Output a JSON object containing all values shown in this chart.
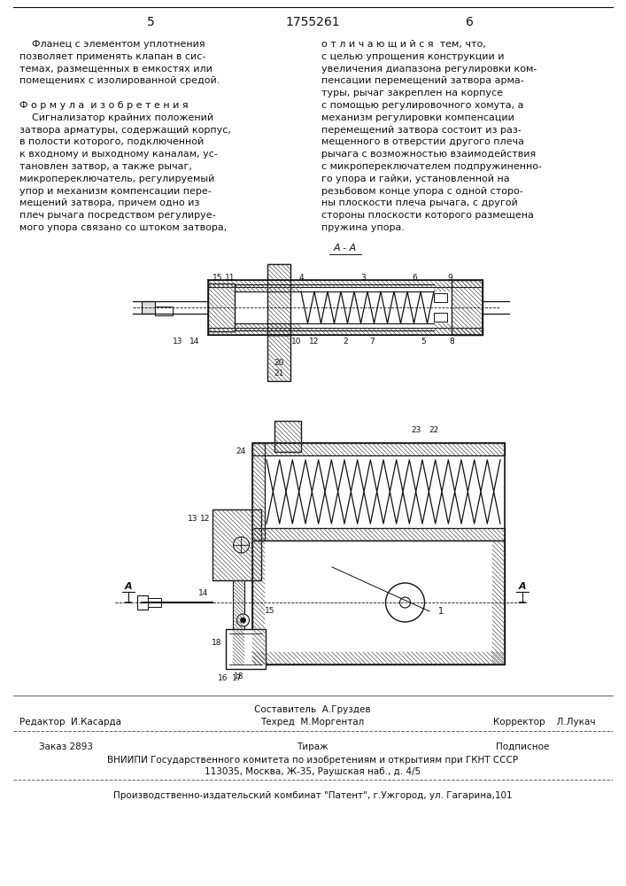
{
  "page_number_left": "5",
  "patent_number": "1755261",
  "page_number_right": "6",
  "bg_color": "#ffffff",
  "text_color": "#1a1a1a",
  "left_column_text": [
    "    Фланец с элементом уплотнения",
    "позволяет применять клапан в сис-",
    "темах, размещенных в емкостях или",
    "помещениях с изолированной средой.",
    "",
    "Ф о р м у л а  и з о б р е т е н и я",
    "    Сигнализатор крайних положений",
    "затвора арматуры, содержащий корпус,",
    "в полости которого, подключенной",
    "к входному и выходному каналам, ус-",
    "тановлен затвор, а также рычаг,",
    "микропереключатель, регулируемый",
    "упор и механизм компенсации пере-",
    "мещений затвора, причем одно из",
    "плеч рычага посредством регулируе-",
    "мого упора связано со штоком затвора,"
  ],
  "right_column_text": [
    "о т л и ч а ю щ и й с я  тем, что,",
    "с целью упрощения конструкции и",
    "увеличения диапазона регулировки ком-",
    "пенсации перемещений затвора арма-",
    "туры, рычаг закреплен на корпусе",
    "с помощью регулировочного хомута, а",
    "механизм регулировки компенсации",
    "перемещений затвора состоит из раз-",
    "мещенного в отверстии другого плеча",
    "рычага с возможностью взаимодействия",
    "с микропереключателем подпружиненно-",
    "го упора и гайки, установленной на",
    "резьбовом конце упора с одной сторо-",
    "ны плоскости плеча рычага, с другой",
    "стороны плоскости которого размещена",
    "пружина упора."
  ],
  "footer_editor": "Редактор  И.Касарда",
  "footer_tech": "Техред  М.Моргентал",
  "footer_corrector": "Корректор    Л.Лукач",
  "footer_composer": "Составитель  А.Груздев",
  "footer_order": "Заказ 2893",
  "footer_edition": "Тираж",
  "footer_subscription": "Подписное",
  "footer_vniip": "ВНИИПИ Государственного комитета по изобретениям и открытиям при ГКНТ СССР",
  "footer_address": "113035, Москва, Ж-35, Раушская наб., д. 4/5",
  "footer_publisher": "Производственно-издательский комбинат \"Патент\", г.Ужгород, ул. Гагарина,101"
}
